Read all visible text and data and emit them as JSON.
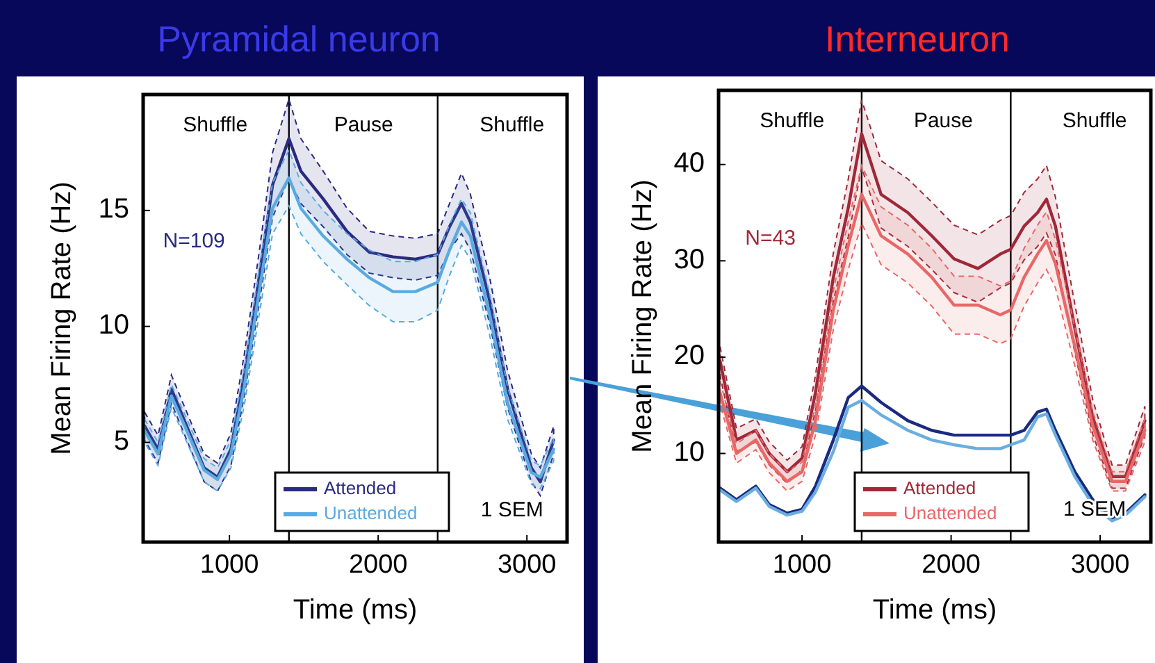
{
  "chart_data": [
    {
      "type": "line",
      "title": "Pyramidal neuron",
      "xlabel": "Time (ms)",
      "ylabel": "Mean Firing Rate (Hz)",
      "xlim": [
        420,
        3270
      ],
      "xticks": [
        1000,
        2000,
        3000
      ],
      "ylim": [
        0.7,
        20
      ],
      "yticks": [
        5,
        10,
        15
      ],
      "grid": false,
      "legend": "bottom",
      "x": [
        430,
        520,
        610,
        700,
        830,
        920,
        1010,
        1100,
        1200,
        1290,
        1400,
        1480,
        1630,
        1790,
        1940,
        2100,
        2250,
        2400,
        2480,
        2560,
        2620,
        2750,
        2870,
        3030,
        3090,
        3180
      ],
      "ref_lines": [
        {
          "axis": "x",
          "value": 1400,
          "color": "#000000"
        },
        {
          "axis": "x",
          "value": 2400,
          "color": "#000000"
        }
      ],
      "annotations": [
        "Shuffle",
        "Pause",
        "Shuffle",
        "N=109",
        "1 SEM"
      ],
      "series": [
        {
          "name": "Attended",
          "color": "#2a2a80",
          "values": [
            5.7,
            4.7,
            7.3,
            5.9,
            3.9,
            3.5,
            4.7,
            7.9,
            12.1,
            16.1,
            18.1,
            16.7,
            15.5,
            14.1,
            13.2,
            13,
            12.9,
            13.1,
            14.3,
            15.3,
            14.5,
            11.1,
            7.3,
            3.9,
            3.3,
            5.1
          ],
          "upper": [
            6.3,
            5.3,
            7.9,
            6.5,
            4.5,
            4.1,
            5.4,
            8.8,
            13.2,
            17.5,
            19.8,
            18.1,
            16.7,
            15.1,
            14.1,
            13.9,
            13.8,
            14.0,
            15.3,
            16.6,
            15.7,
            12.1,
            8.1,
            4.5,
            3.9,
            5.7
          ],
          "lower": [
            5.1,
            4.1,
            6.7,
            5.3,
            3.3,
            2.9,
            4.0,
            7.0,
            11.0,
            14.7,
            16.4,
            15.3,
            14.3,
            13.1,
            12.3,
            12.1,
            12.0,
            12.2,
            13.3,
            14.0,
            13.3,
            10.1,
            6.5,
            3.3,
            2.7,
            4.5
          ]
        },
        {
          "name": "Unattended",
          "color": "#5aaae0",
          "values": [
            5.5,
            4.5,
            7.0,
            5.7,
            3.8,
            3.4,
            4.5,
            7.4,
            11.5,
            15.1,
            16.4,
            15.1,
            13.9,
            12.9,
            12.1,
            11.5,
            11.5,
            11.9,
            13.3,
            14.5,
            13.9,
            10.5,
            6.7,
            3.7,
            3.5,
            4.7
          ],
          "upper": [
            6.0,
            5.0,
            7.5,
            6.2,
            4.3,
            3.9,
            5.1,
            8.2,
            12.5,
            16.2,
            17.6,
            16.2,
            15.0,
            14.0,
            13.3,
            12.8,
            12.8,
            13.1,
            14.4,
            15.5,
            14.9,
            11.4,
            7.4,
            4.2,
            4.0,
            5.2
          ],
          "lower": [
            5.0,
            4.0,
            6.5,
            5.2,
            3.3,
            2.9,
            3.9,
            6.6,
            10.5,
            14.0,
            15.2,
            14.0,
            12.8,
            11.8,
            10.9,
            10.2,
            10.2,
            10.7,
            12.2,
            13.5,
            12.9,
            9.6,
            6.0,
            3.2,
            3.0,
            4.2
          ]
        }
      ]
    },
    {
      "type": "line",
      "title": "Interneuron",
      "xlabel": "Time (ms)",
      "ylabel": "Mean Firing Rate (Hz)",
      "xlim": [
        440,
        3340
      ],
      "xticks": [
        1000,
        2000,
        3000
      ],
      "ylim": [
        0.8,
        47.7
      ],
      "yticks": [
        10,
        20,
        30,
        40
      ],
      "grid": false,
      "legend": "bottom",
      "x": [
        450,
        560,
        690,
        780,
        900,
        1000,
        1090,
        1210,
        1310,
        1400,
        1530,
        1710,
        1870,
        2020,
        2180,
        2330,
        2400,
        2490,
        2580,
        2640,
        2700,
        2830,
        2950,
        3080,
        3170,
        3300
      ],
      "ref_lines": [
        {
          "axis": "x",
          "value": 1400,
          "color": "#000000"
        },
        {
          "axis": "x",
          "value": 2400,
          "color": "#000000"
        }
      ],
      "annotations": [
        "Shuffle",
        "Pause",
        "Shuffle",
        "N=43",
        "1 SEM"
      ],
      "series": [
        {
          "name": "Attended",
          "color": "#a02838",
          "values": [
            19.6,
            11.4,
            12.4,
            10,
            8.1,
            9.5,
            16.3,
            28.3,
            35.5,
            43.2,
            36.9,
            35,
            32.6,
            30.2,
            29.2,
            30.7,
            31.2,
            33.6,
            35,
            36.4,
            33.6,
            23,
            13.8,
            7.6,
            7.6,
            13.4
          ],
          "upper": [
            21.1,
            12.6,
            13.6,
            11.2,
            9.3,
            10.7,
            18.1,
            30.8,
            38.5,
            46.7,
            40.4,
            38.5,
            36.1,
            33.7,
            32.7,
            34.2,
            34.7,
            37.1,
            38.5,
            39.9,
            36.6,
            25.5,
            15.6,
            8.8,
            8.8,
            14.9
          ],
          "lower": [
            18.1,
            10.2,
            11.2,
            8.8,
            6.9,
            8.3,
            14.5,
            25.8,
            32.5,
            39.7,
            33.4,
            31.5,
            29.1,
            26.7,
            25.7,
            27.2,
            27.7,
            30.1,
            31.5,
            32.9,
            30.6,
            20.5,
            12.0,
            6.4,
            6.4,
            11.9
          ]
        },
        {
          "name": "Unattended",
          "color": "#e86868",
          "values": [
            16.3,
            10,
            11.4,
            9,
            7.1,
            8.1,
            13.4,
            24.9,
            31.6,
            36.9,
            32.6,
            30.7,
            28.3,
            25.4,
            25.4,
            24.4,
            24.9,
            28.3,
            30.7,
            32.1,
            29.7,
            21.1,
            12.9,
            7.1,
            7.1,
            12.4
          ],
          "upper": [
            17.5,
            11,
            12.4,
            10,
            8.1,
            9.1,
            14.9,
            26.9,
            34.1,
            39.9,
            35.6,
            33.7,
            31.3,
            28.4,
            28.4,
            27.4,
            27.9,
            31.3,
            33.7,
            35.1,
            32.2,
            23.1,
            14.4,
            8.1,
            8.1,
            13.6
          ],
          "lower": [
            15.1,
            9,
            10.4,
            8,
            6.1,
            7.1,
            11.9,
            22.9,
            29.1,
            33.9,
            29.6,
            27.7,
            25.3,
            22.4,
            22.4,
            21.4,
            21.9,
            25.3,
            27.7,
            29.1,
            27.2,
            19.1,
            11.4,
            6.1,
            6.1,
            11.2
          ]
        },
        {
          "color": "#1a2a80",
          "values": [
            6.4,
            5.2,
            6.6,
            4.7,
            3.8,
            4.2,
            6.6,
            11.4,
            15.8,
            17.0,
            15.3,
            13.4,
            12.4,
            11.9,
            11.9,
            11.9,
            11.9,
            12.4,
            14.3,
            14.6,
            12.4,
            8.1,
            5.2,
            3.3,
            3.8,
            5.7
          ]
        },
        {
          "color": "#6aaee0",
          "values": [
            6.2,
            5.0,
            6.4,
            4.5,
            3.6,
            4.0,
            6.0,
            10.2,
            14.8,
            15.5,
            14.0,
            12.4,
            11.4,
            10.9,
            10.5,
            10.5,
            10.9,
            11.4,
            13.8,
            14.1,
            11.9,
            7.6,
            4.7,
            3.0,
            3.6,
            5.5
          ]
        }
      ]
    }
  ]
}
